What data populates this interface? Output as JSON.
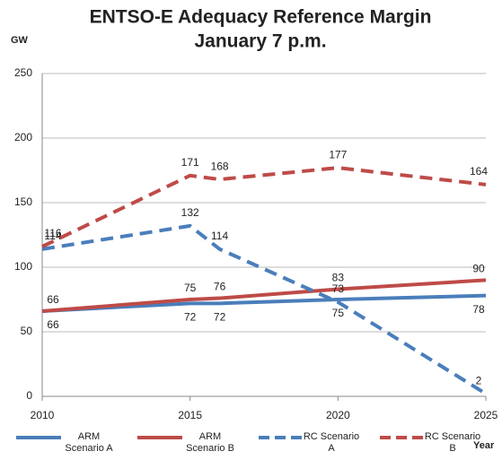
{
  "chart_data": {
    "type": "line",
    "title": "ENTSO-E Adequacy Reference Margin",
    "subtitle": "January 7 p.m.",
    "y_label": "GW",
    "x_label": "Year",
    "x": [
      2010,
      2015,
      2016,
      2020,
      2025
    ],
    "xlim": [
      2010,
      2025
    ],
    "xticks": [
      2010,
      2015,
      2020,
      2025
    ],
    "ylim": [
      0,
      250
    ],
    "yticks": [
      0,
      50,
      100,
      150,
      200,
      250
    ],
    "grid": true,
    "series": [
      {
        "name": "ARM Scenario A",
        "color": "#4a7ebb",
        "dash": false,
        "values": [
          66,
          72,
          72,
          75,
          78
        ]
      },
      {
        "name": "ARM Scenario B",
        "color": "#be4b48",
        "dash": false,
        "values": [
          66,
          75,
          76,
          83,
          90
        ]
      },
      {
        "name": "RC Scenario A",
        "color": "#4a7ebb",
        "dash": true,
        "values": [
          114,
          132,
          114,
          73,
          2
        ]
      },
      {
        "name": "RC Scenario B",
        "color": "#be4b48",
        "dash": true,
        "values": [
          116,
          171,
          168,
          177,
          164
        ]
      }
    ]
  }
}
